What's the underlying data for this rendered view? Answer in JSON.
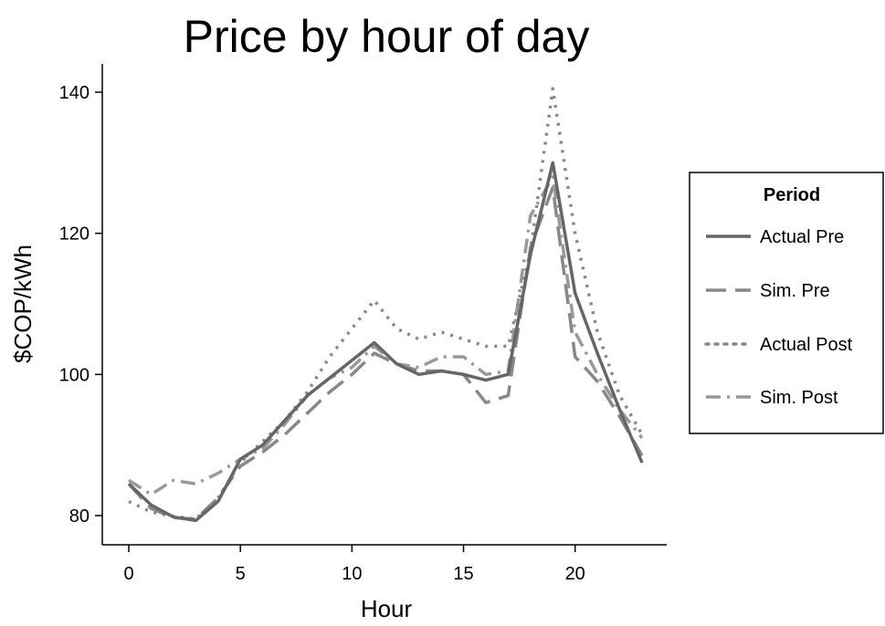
{
  "chart_data": {
    "type": "line",
    "title": "Price by hour of day",
    "xlabel": "Hour",
    "ylabel": "$COP/kWh",
    "xlim": [
      0,
      23
    ],
    "ylim": [
      76,
      144
    ],
    "xticks": [
      0,
      5,
      10,
      15,
      20
    ],
    "yticks": [
      80,
      100,
      120,
      140
    ],
    "x": [
      0,
      1,
      2,
      3,
      4,
      5,
      6,
      7,
      8,
      9,
      10,
      11,
      12,
      13,
      14,
      15,
      16,
      17,
      18,
      19,
      20,
      21,
      22,
      23
    ],
    "grid": false,
    "legend": {
      "title": "Period",
      "placement": "right"
    },
    "series": [
      {
        "name": "Actual Pre",
        "style": "solid",
        "color": "#666666",
        "values": [
          84.5,
          81.5,
          79.8,
          79.3,
          82.0,
          88.0,
          90.0,
          93.5,
          97.0,
          99.5,
          102.0,
          104.5,
          101.5,
          100.0,
          100.5,
          100.0,
          99.2,
          100.0,
          117.0,
          130.0,
          111.5,
          103.0,
          95.0,
          87.5
        ]
      },
      {
        "name": "Sim. Pre",
        "style": "dash",
        "color": "#888888",
        "values": [
          84.5,
          81.0,
          79.7,
          79.5,
          82.5,
          87.0,
          89.0,
          91.5,
          94.5,
          97.5,
          100.0,
          103.0,
          101.5,
          100.5,
          100.5,
          100.0,
          96.0,
          97.0,
          118.0,
          126.5,
          102.5,
          99.0,
          94.0,
          88.5
        ]
      },
      {
        "name": "Actual Post",
        "style": "dot",
        "color": "#888888",
        "values": [
          82.0,
          80.5,
          79.9,
          79.5,
          82.5,
          87.5,
          90.5,
          93.5,
          97.5,
          102.5,
          106.5,
          110.5,
          106.5,
          105.0,
          106.0,
          105.0,
          104.0,
          104.0,
          117.5,
          140.5,
          120.0,
          106.0,
          97.0,
          91.5
        ]
      },
      {
        "name": "Sim. Post",
        "style": "dashdot",
        "color": "#999999",
        "values": [
          85.0,
          83.0,
          85.0,
          84.5,
          86.0,
          88.0,
          89.5,
          93.0,
          97.0,
          99.5,
          101.0,
          104.0,
          101.5,
          101.0,
          102.5,
          102.5,
          100.0,
          100.5,
          122.5,
          128.0,
          106.0,
          100.0,
          95.0,
          91.0
        ]
      }
    ]
  }
}
